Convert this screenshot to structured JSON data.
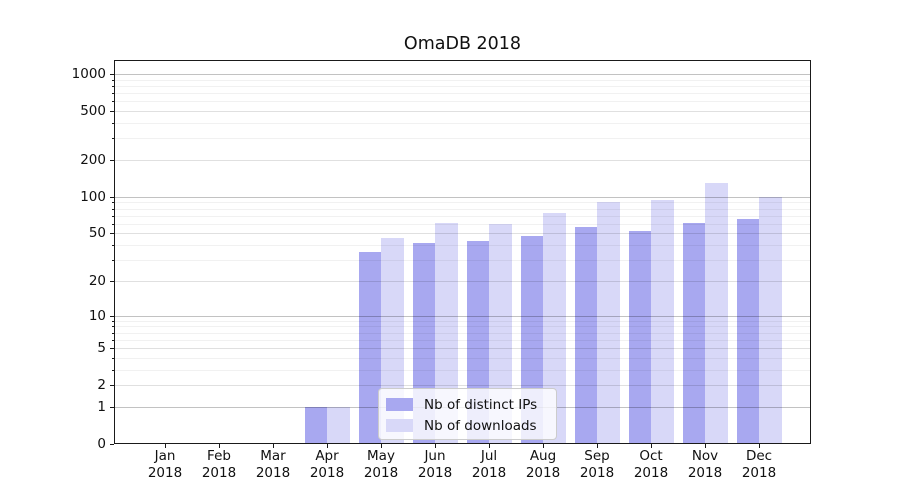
{
  "title": "OmaDB 2018",
  "chart_data": {
    "type": "bar",
    "title": "OmaDB 2018",
    "categories": [
      {
        "label": "Jan",
        "year": "2018"
      },
      {
        "label": "Feb",
        "year": "2018"
      },
      {
        "label": "Mar",
        "year": "2018"
      },
      {
        "label": "Apr",
        "year": "2018"
      },
      {
        "label": "May",
        "year": "2018"
      },
      {
        "label": "Jun",
        "year": "2018"
      },
      {
        "label": "Jul",
        "year": "2018"
      },
      {
        "label": "Aug",
        "year": "2018"
      },
      {
        "label": "Sep",
        "year": "2018"
      },
      {
        "label": "Oct",
        "year": "2018"
      },
      {
        "label": "Nov",
        "year": "2018"
      },
      {
        "label": "Dec",
        "year": "2018"
      }
    ],
    "series": [
      {
        "name": "Nb of distinct IPs",
        "color": "#a8a8f0",
        "values": [
          0,
          0,
          0,
          1,
          35,
          42,
          43,
          48,
          57,
          52,
          61,
          66
        ]
      },
      {
        "name": "Nb of downloads",
        "color": "#d8d8f8",
        "values": [
          0,
          0,
          0,
          1,
          46,
          61,
          60,
          73,
          90,
          94,
          130,
          100
        ]
      }
    ],
    "xlabel": "",
    "ylabel": "",
    "y_scale": "log10(1+v)",
    "ylim": [
      0,
      1300
    ],
    "y_ticks": [
      0,
      1,
      2,
      5,
      10,
      20,
      50,
      100,
      200,
      500,
      1000
    ],
    "y_minor_ticks": [
      3,
      4,
      6,
      7,
      8,
      9,
      30,
      40,
      60,
      70,
      80,
      90,
      300,
      400,
      600,
      700,
      800,
      900
    ],
    "grid": "on",
    "legend_position": "lower center (inside plot)",
    "grid_colors": {
      "decade": "rgba(0,0,0,0.24)",
      "labeled": "rgba(0,0,0,0.12)",
      "minor": "rgba(0,0,0,0.055)"
    }
  }
}
